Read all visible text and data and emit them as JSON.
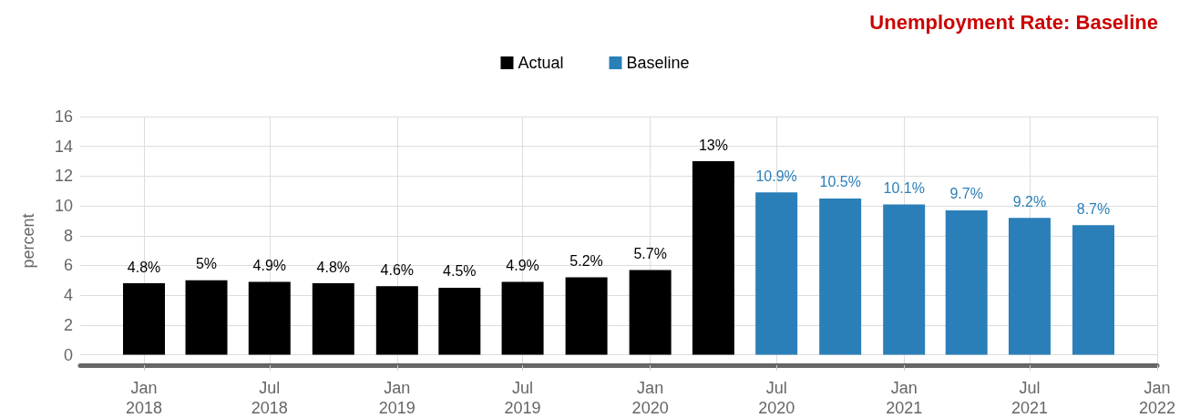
{
  "chart_data": {
    "type": "bar",
    "title": "Unemployment Rate: Baseline",
    "ylabel": "percent",
    "series": [
      {
        "name": "Actual",
        "color": "#000000",
        "x": [
          "2018-01",
          "2018-04",
          "2018-07",
          "2018-10",
          "2019-01",
          "2019-04",
          "2019-07",
          "2019-10",
          "2020-01",
          "2020-04"
        ],
        "values": [
          4.8,
          5,
          4.9,
          4.8,
          4.6,
          4.5,
          4.9,
          5.2,
          5.7,
          13
        ],
        "value_labels": [
          "4.8%",
          "5%",
          "4.9%",
          "4.8%",
          "4.6%",
          "4.5%",
          "4.9%",
          "5.2%",
          "5.7%",
          "13%"
        ]
      },
      {
        "name": "Baseline",
        "color": "#2b7fb8",
        "x": [
          "2020-07",
          "2020-10",
          "2021-01",
          "2021-04",
          "2021-07",
          "2021-10"
        ],
        "values": [
          10.9,
          10.5,
          10.1,
          9.7,
          9.2,
          8.7
        ],
        "value_labels": [
          "10.9%",
          "10.5%",
          "10.1%",
          "9.7%",
          "9.2%",
          "8.7%"
        ]
      }
    ],
    "xlim": [
      "2017-10",
      "2022-01"
    ],
    "xticks": [
      {
        "value": "2018-01",
        "label": "Jan\n2018"
      },
      {
        "value": "2018-07",
        "label": "Jul\n2018"
      },
      {
        "value": "2019-01",
        "label": "Jan\n2019"
      },
      {
        "value": "2019-07",
        "label": "Jul\n2019"
      },
      {
        "value": "2020-01",
        "label": "Jan\n2020"
      },
      {
        "value": "2020-07",
        "label": "Jul\n2020"
      },
      {
        "value": "2021-01",
        "label": "Jan\n2021"
      },
      {
        "value": "2021-07",
        "label": "Jul\n2021"
      },
      {
        "value": "2022-01",
        "label": "Jan\n2022"
      }
    ],
    "ylim": [
      -0.7,
      16
    ],
    "yticks": [
      0,
      2,
      4,
      6,
      8,
      10,
      12,
      14,
      16
    ],
    "grid": true,
    "legend": "top"
  }
}
